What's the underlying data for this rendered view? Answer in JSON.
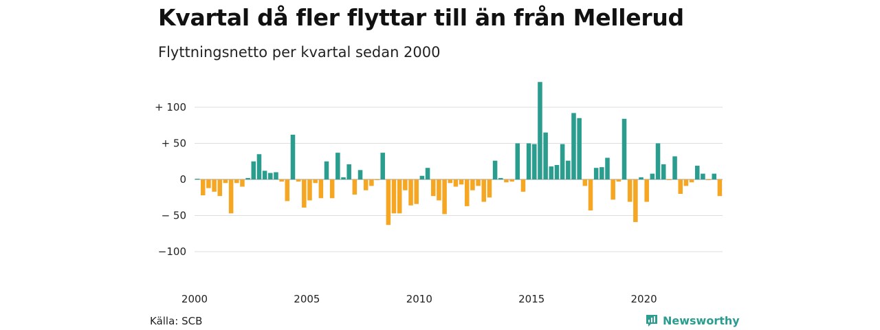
{
  "title": "Kvartal då fler flyttar till än från Mellerud",
  "subtitle": "Flyttningsnetto per kvartal sedan 2000",
  "source": "Källa: SCB",
  "brand": {
    "name": "Newsworthy",
    "icon": "newsworthy-logo-icon"
  },
  "colors": {
    "positive": "#2a9d8f",
    "negative": "#f5a623",
    "grid": "#dddddd",
    "zero": "#999999"
  },
  "chart_data": {
    "type": "bar",
    "title": "Kvartal då fler flyttar till än från Mellerud",
    "subtitle": "Flyttningsnetto per kvartal sedan 2000",
    "xlabel": "",
    "ylabel": "",
    "ylim": [
      -125,
      135
    ],
    "y_ticks": [
      {
        "value": 100,
        "label": "+ 100"
      },
      {
        "value": 50,
        "label": "+  50"
      },
      {
        "value": 0,
        "label": "0"
      },
      {
        "value": -50,
        "label": "− 50"
      },
      {
        "value": -100,
        "label": "−100"
      }
    ],
    "x_ticks": [
      "2000",
      "2005",
      "2010",
      "2015",
      "2020"
    ],
    "x_tick_quarter_index": [
      0,
      20,
      40,
      60,
      80
    ],
    "start": "2000 Q1",
    "grid": true,
    "series": [
      {
        "values": [
          1,
          -22,
          -12,
          -17,
          -23,
          -5,
          -47,
          -5,
          -10,
          2,
          25,
          35,
          12,
          9,
          10,
          -3,
          -30,
          62,
          -3,
          -39,
          -29,
          -5,
          -26,
          25,
          -26,
          37,
          3,
          21,
          -21,
          13,
          -15,
          -9,
          -1,
          37,
          -63,
          -47,
          -47,
          -15,
          -36,
          -34,
          5,
          16,
          -23,
          -29,
          -48,
          -5,
          -10,
          -7,
          -37,
          -15,
          -9,
          -31,
          -25,
          26,
          2,
          -4,
          -3,
          50,
          -17,
          50,
          49,
          135,
          65,
          18,
          20,
          49,
          26,
          92,
          85,
          -9,
          -43,
          16,
          17,
          30,
          -28,
          -3,
          84,
          -31,
          -59,
          3,
          -31,
          8,
          50,
          21,
          -1,
          32,
          -20,
          -9,
          -4,
          19,
          8,
          -1,
          8,
          -23
        ]
      }
    ]
  }
}
